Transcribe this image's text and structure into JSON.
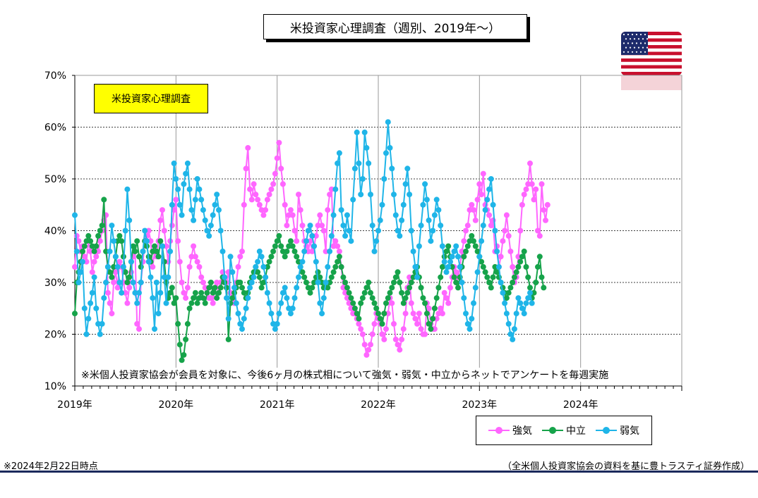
{
  "title": "米投資家心理調査（週別、2019年～）",
  "box_label": "米投資家心理調査",
  "note": "※米個人投資家協会が会員を対象に、今後6ヶ月の株式相について強気・弱気・中立からネットでアンケートを毎週実施",
  "footer_left": "※2024年2月22日時点",
  "footer_right": "（全米個人投資家協会の資料を基に豊トラスティ証券作成）",
  "flag_icon": "us-flag-icon",
  "chart_data": {
    "type": "line",
    "x_tick_labels": [
      "2019年",
      "2020年",
      "2021年",
      "2022年",
      "2023年",
      "2024年"
    ],
    "y_tick_labels": [
      "10%",
      "20%",
      "30%",
      "40%",
      "50%",
      "60%",
      "70%"
    ],
    "ylim": [
      10,
      70
    ],
    "xlim": [
      2019.0,
      2025.0
    ],
    "grid": "horizontal dashed",
    "legend_position": "bottom-right",
    "series": [
      {
        "name": "強気",
        "color": "#ff66ff",
        "x_start": 2019.0,
        "x_step": 0.01923,
        "values": [
          33,
          39,
          38,
          36,
          37,
          35,
          34,
          38,
          36,
          32,
          34,
          35,
          36,
          38,
          40,
          42,
          43,
          28,
          26,
          24,
          30,
          32,
          29,
          34,
          33,
          30,
          28,
          26,
          29,
          32,
          35,
          36,
          22,
          21,
          30,
          34,
          38,
          39,
          40,
          38,
          33,
          36,
          35,
          38,
          42,
          44,
          40,
          37,
          34,
          38,
          41,
          44,
          46,
          38,
          34,
          30,
          28,
          27,
          29,
          33,
          35,
          37,
          35,
          34,
          33,
          31,
          30,
          29,
          28,
          27,
          27,
          26,
          29,
          30,
          28,
          30,
          32,
          31,
          30,
          32,
          28,
          27,
          26,
          30,
          33,
          35,
          36,
          45,
          52,
          56,
          48,
          46,
          49,
          47,
          46,
          45,
          44,
          43,
          44,
          46,
          47,
          48,
          49,
          51,
          54,
          57,
          52,
          49,
          45,
          41,
          43,
          44,
          43,
          40,
          38,
          47,
          44,
          41,
          38,
          37,
          36,
          38,
          36,
          37,
          39,
          41,
          43,
          41,
          40,
          36,
          44,
          47,
          48,
          37,
          38,
          37,
          36,
          33,
          29,
          28,
          27,
          26,
          25,
          24,
          24,
          23,
          22,
          21,
          20,
          18,
          16,
          17,
          18,
          20,
          22,
          24,
          23,
          22,
          20,
          19,
          21,
          24,
          27,
          26,
          22,
          19,
          18,
          17,
          19,
          21,
          24,
          29,
          31,
          26,
          24,
          23,
          22,
          24,
          21,
          20,
          20,
          26,
          25,
          22,
          21,
          21,
          23,
          24,
          25,
          24,
          28,
          27,
          26,
          29,
          31,
          33,
          32,
          31,
          33,
          36,
          38,
          40,
          41,
          44,
          45,
          44,
          42,
          46,
          49,
          47,
          51,
          45,
          44,
          43,
          41,
          42,
          36,
          37,
          33,
          35,
          38,
          40,
          43,
          39,
          36,
          33,
          30,
          31,
          35,
          40,
          45,
          47,
          48,
          49,
          53,
          49,
          46,
          48,
          40,
          39,
          49,
          44,
          42,
          45
        ]
      },
      {
        "name": "中立",
        "color": "#16a34a",
        "x_start": 2019.0,
        "x_step": 0.01923,
        "values": [
          24,
          30,
          32,
          34,
          36,
          37,
          38,
          39,
          38,
          37,
          36,
          37,
          39,
          40,
          41,
          46,
          36,
          33,
          32,
          31,
          33,
          35,
          38,
          39,
          38,
          35,
          32,
          30,
          31,
          34,
          37,
          36,
          38,
          35,
          33,
          36,
          38,
          37,
          35,
          34,
          36,
          37,
          36,
          35,
          38,
          37,
          34,
          30,
          27,
          28,
          29,
          26,
          27,
          22,
          18,
          15,
          16,
          19,
          22,
          25,
          26,
          27,
          28,
          26,
          27,
          28,
          27,
          26,
          28,
          29,
          30,
          28,
          29,
          27,
          28,
          29,
          31,
          30,
          29,
          19,
          26,
          27,
          28,
          29,
          30,
          30,
          29,
          28,
          27,
          28,
          30,
          31,
          32,
          33,
          32,
          31,
          29,
          30,
          31,
          33,
          34,
          35,
          36,
          37,
          38,
          39,
          37,
          36,
          35,
          36,
          37,
          38,
          37,
          36,
          35,
          34,
          33,
          32,
          31,
          30,
          29,
          28,
          29,
          30,
          31,
          32,
          31,
          30,
          29,
          30,
          29,
          30,
          31,
          32,
          33,
          34,
          35,
          33,
          31,
          30,
          29,
          28,
          27,
          26,
          25,
          24,
          23,
          26,
          27,
          28,
          29,
          30,
          28,
          27,
          26,
          25,
          24,
          23,
          22,
          24,
          26,
          27,
          28,
          29,
          30,
          31,
          32,
          30,
          28,
          26,
          27,
          28,
          29,
          30,
          31,
          32,
          33,
          31,
          29,
          27,
          26,
          24,
          22,
          21,
          23,
          25,
          27,
          29,
          31,
          33,
          35,
          36,
          37,
          35,
          33,
          31,
          30,
          29,
          31,
          33,
          35,
          36,
          37,
          38,
          39,
          38,
          37,
          36,
          35,
          34,
          33,
          32,
          31,
          30,
          29,
          31,
          33,
          32,
          31,
          30,
          29,
          28,
          27,
          28,
          29,
          30,
          31,
          32,
          33,
          34,
          35,
          36,
          33,
          31,
          29,
          27,
          28,
          30,
          33,
          35,
          31,
          29
        ]
      },
      {
        "name": "弱気",
        "color": "#1fb5e8",
        "x_start": 2019.0,
        "x_step": 0.01923,
        "values": [
          43,
          36,
          30,
          32,
          34,
          25,
          20,
          23,
          26,
          28,
          31,
          25,
          22,
          20,
          22,
          27,
          30,
          33,
          36,
          41,
          38,
          35,
          33,
          30,
          28,
          33,
          40,
          48,
          42,
          34,
          30,
          28,
          26,
          28,
          30,
          36,
          40,
          38,
          34,
          31,
          27,
          21,
          30,
          24,
          28,
          37,
          31,
          26,
          31,
          36,
          45,
          53,
          50,
          48,
          45,
          43,
          49,
          51,
          53,
          48,
          44,
          42,
          46,
          50,
          48,
          46,
          44,
          42,
          40,
          39,
          41,
          43,
          45,
          47,
          44,
          40,
          36,
          31,
          27,
          23,
          35,
          32,
          29,
          26,
          24,
          22,
          21,
          23,
          25,
          27,
          29,
          30,
          31,
          33,
          34,
          36,
          35,
          33,
          31,
          28,
          26,
          24,
          22,
          21,
          22,
          24,
          26,
          28,
          29,
          27,
          25,
          24,
          25,
          27,
          29,
          31,
          33,
          34,
          36,
          38,
          40,
          41,
          39,
          37,
          34,
          30,
          26,
          24,
          27,
          30,
          33,
          36,
          39,
          43,
          48,
          53,
          55,
          44,
          41,
          39,
          43,
          40,
          38,
          46,
          52,
          59,
          53,
          47,
          50,
          59,
          56,
          53,
          47,
          41,
          36,
          38,
          40,
          42,
          45,
          50,
          55,
          61,
          56,
          52,
          47,
          43,
          40,
          39,
          42,
          45,
          49,
          52,
          47,
          40,
          36,
          33,
          31,
          37,
          41,
          45,
          49,
          46,
          42,
          38,
          40,
          43,
          46,
          44,
          41,
          37,
          34,
          32,
          33,
          34,
          35,
          36,
          37,
          35,
          33,
          30,
          27,
          24,
          22,
          21,
          23,
          26,
          29,
          32,
          35,
          38,
          41,
          44,
          46,
          48,
          50,
          45,
          40,
          36,
          33,
          30,
          28,
          26,
          24,
          22,
          20,
          19,
          21,
          24,
          27,
          26,
          25,
          24,
          26,
          27,
          28,
          26
        ]
      }
    ]
  }
}
